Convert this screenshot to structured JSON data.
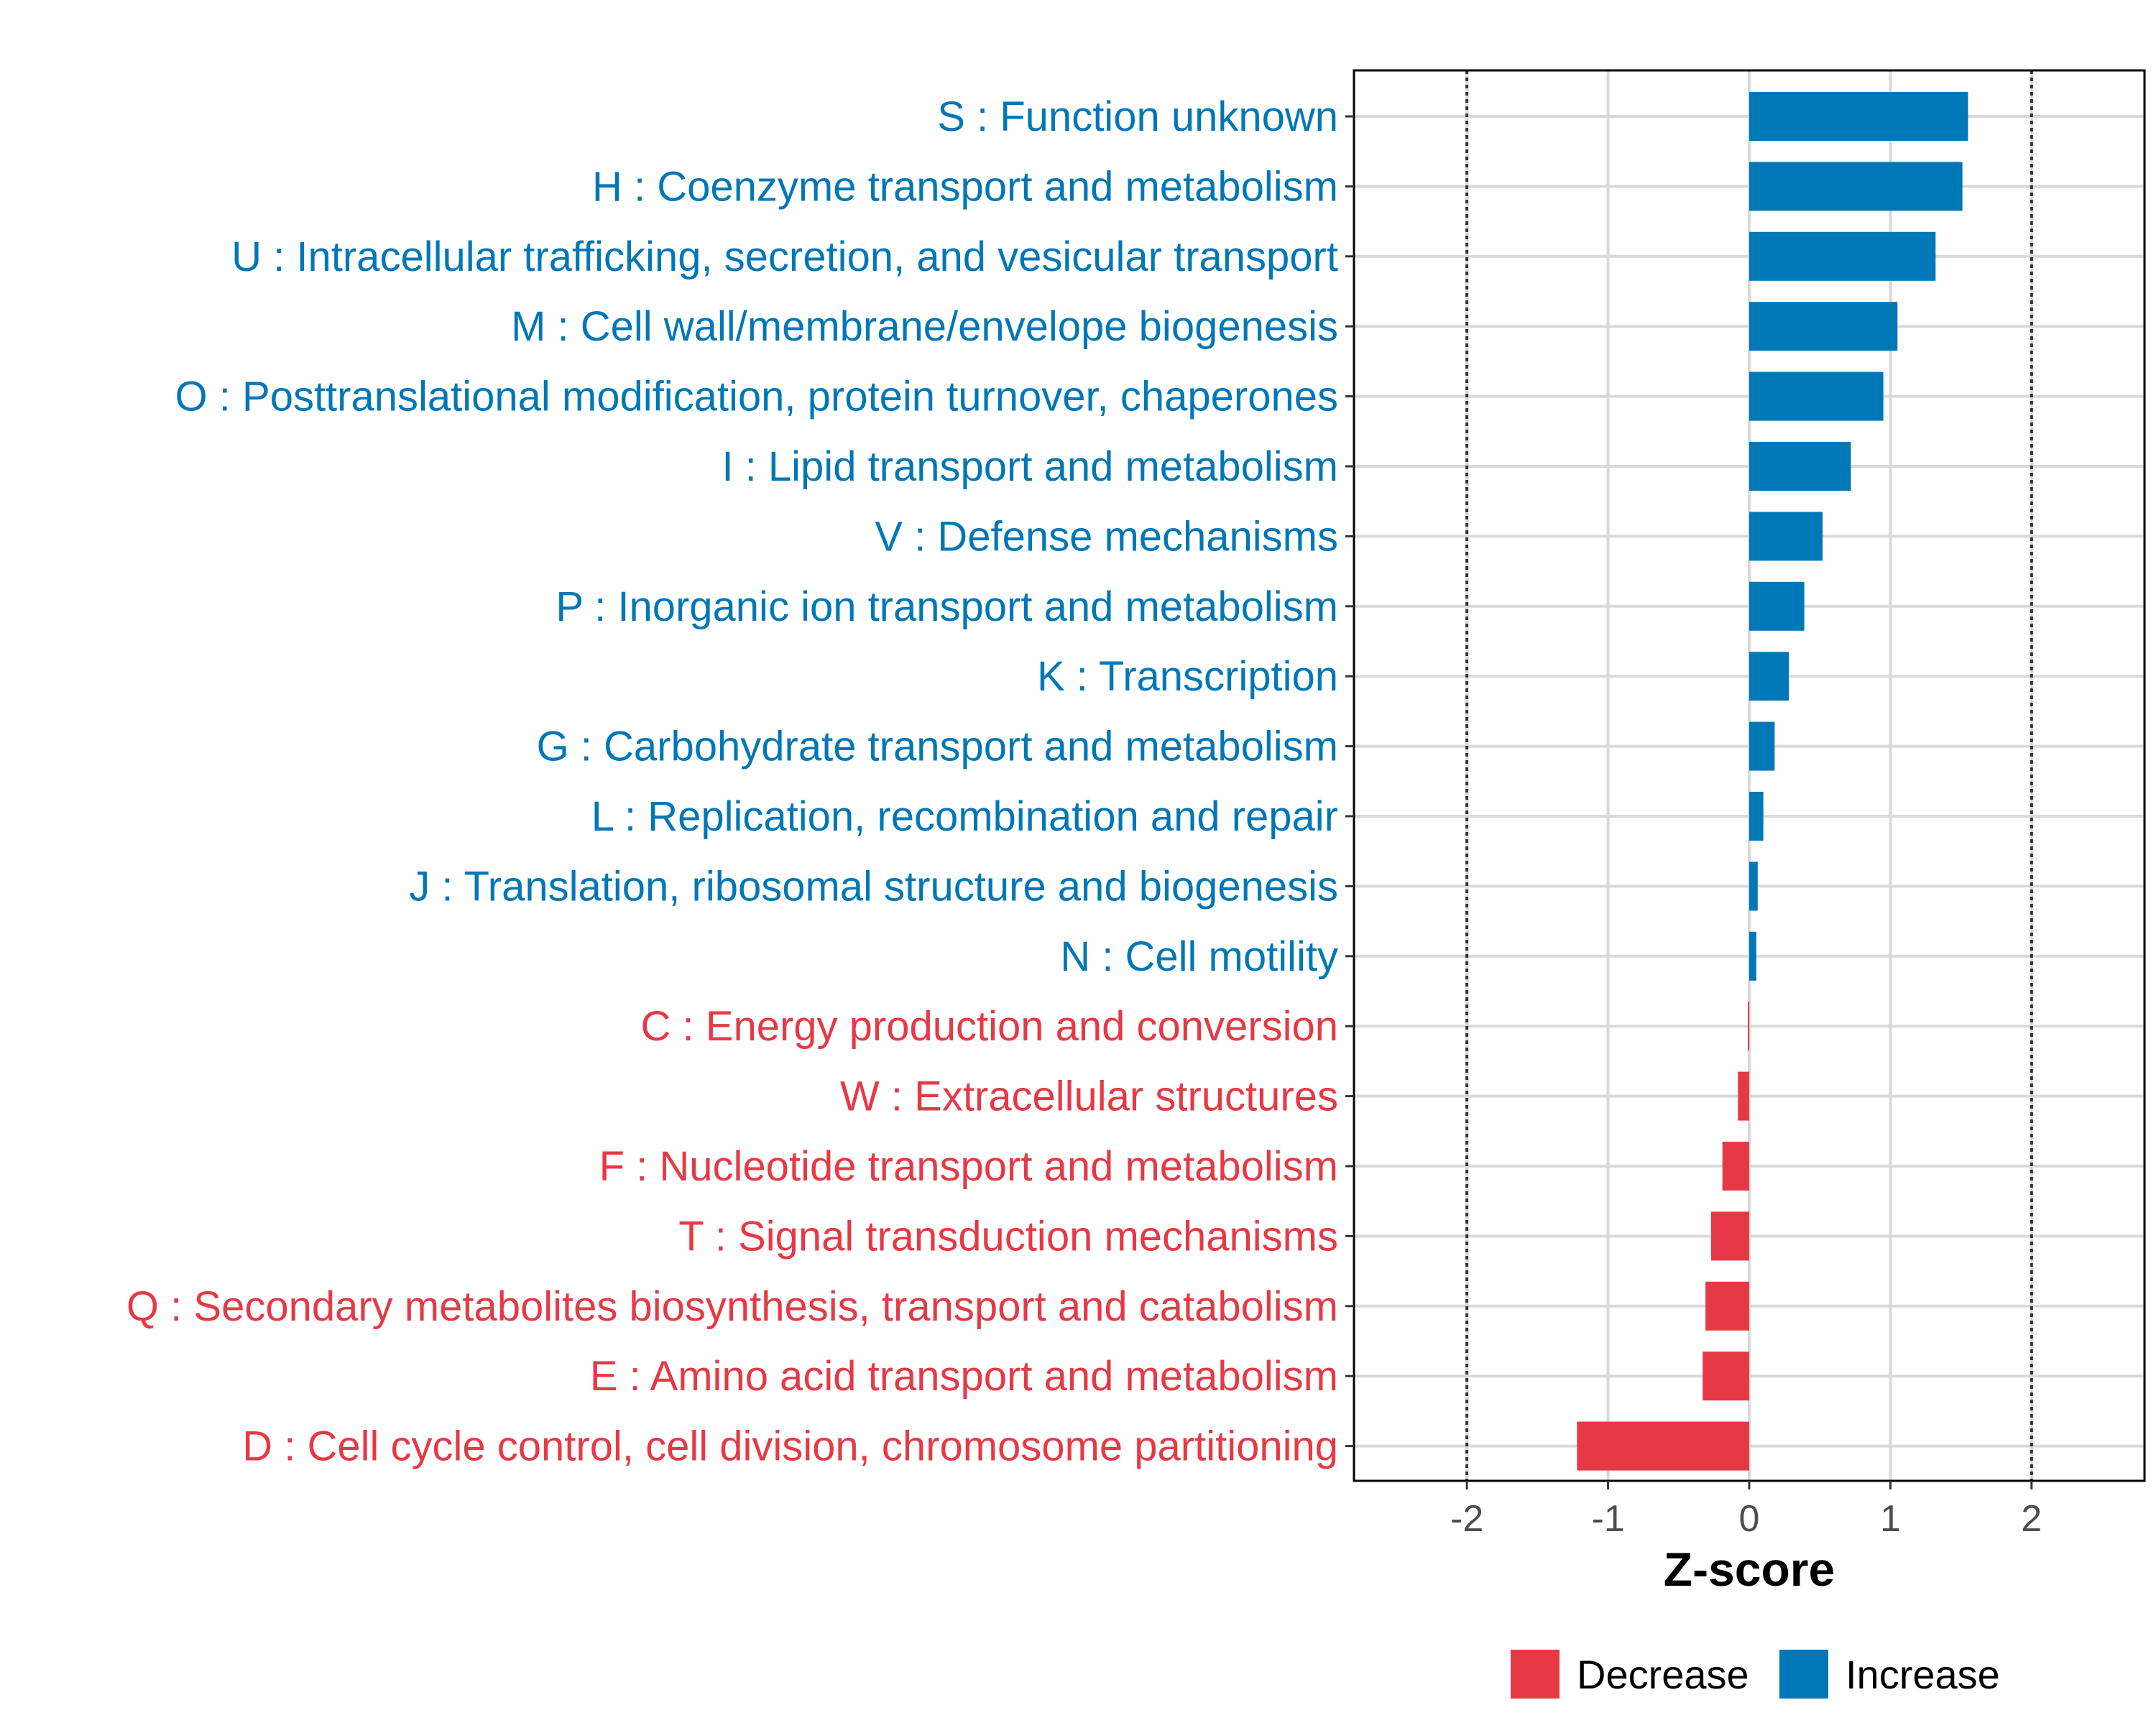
{
  "chart_data": {
    "type": "bar",
    "orientation": "horizontal",
    "xlabel": "Z-score",
    "xlim": [
      -2.8,
      2.8
    ],
    "xticks": [
      -2,
      -1,
      0,
      1,
      2
    ],
    "xtick_labels": [
      "-2",
      "-1",
      "0",
      "1",
      "2"
    ],
    "reference_lines": [
      -2,
      2
    ],
    "grid": true,
    "legend_position": "bottom",
    "legend": [
      {
        "key": "decrease",
        "label": "Decrease",
        "color": "#E63946"
      },
      {
        "key": "increase",
        "label": "Increase",
        "color": "#0077B6"
      }
    ],
    "categories": [
      "S : Function unknown",
      "H : Coenzyme transport and metabolism",
      "U : Intracellular trafficking, secretion, and vesicular transport",
      "M : Cell wall/membrane/envelope biogenesis",
      "O : Posttranslational modification, protein turnover, chaperones",
      "I : Lipid transport and metabolism",
      "V : Defense mechanisms",
      "P : Inorganic ion transport and metabolism",
      "K : Transcription",
      "G : Carbohydrate transport and metabolism",
      "L : Replication, recombination and repair",
      "J : Translation, ribosomal structure and biogenesis",
      "N : Cell motility",
      "C : Energy production and conversion",
      "W : Extracellular structures",
      "F : Nucleotide transport and metabolism",
      "T : Signal transduction mechanisms",
      "Q : Secondary metabolites biosynthesis, transport and catabolism",
      "E : Amino acid transport and metabolism",
      "D : Cell cycle control, cell division, chromosome partitioning"
    ],
    "values": [
      1.55,
      1.51,
      1.32,
      1.05,
      0.95,
      0.72,
      0.52,
      0.39,
      0.28,
      0.18,
      0.1,
      0.06,
      0.05,
      -0.01,
      -0.08,
      -0.19,
      -0.27,
      -0.31,
      -0.33,
      -1.22
    ],
    "groups": [
      "increase",
      "increase",
      "increase",
      "increase",
      "increase",
      "increase",
      "increase",
      "increase",
      "increase",
      "increase",
      "increase",
      "increase",
      "increase",
      "decrease",
      "decrease",
      "decrease",
      "decrease",
      "decrease",
      "decrease",
      "decrease"
    ]
  }
}
